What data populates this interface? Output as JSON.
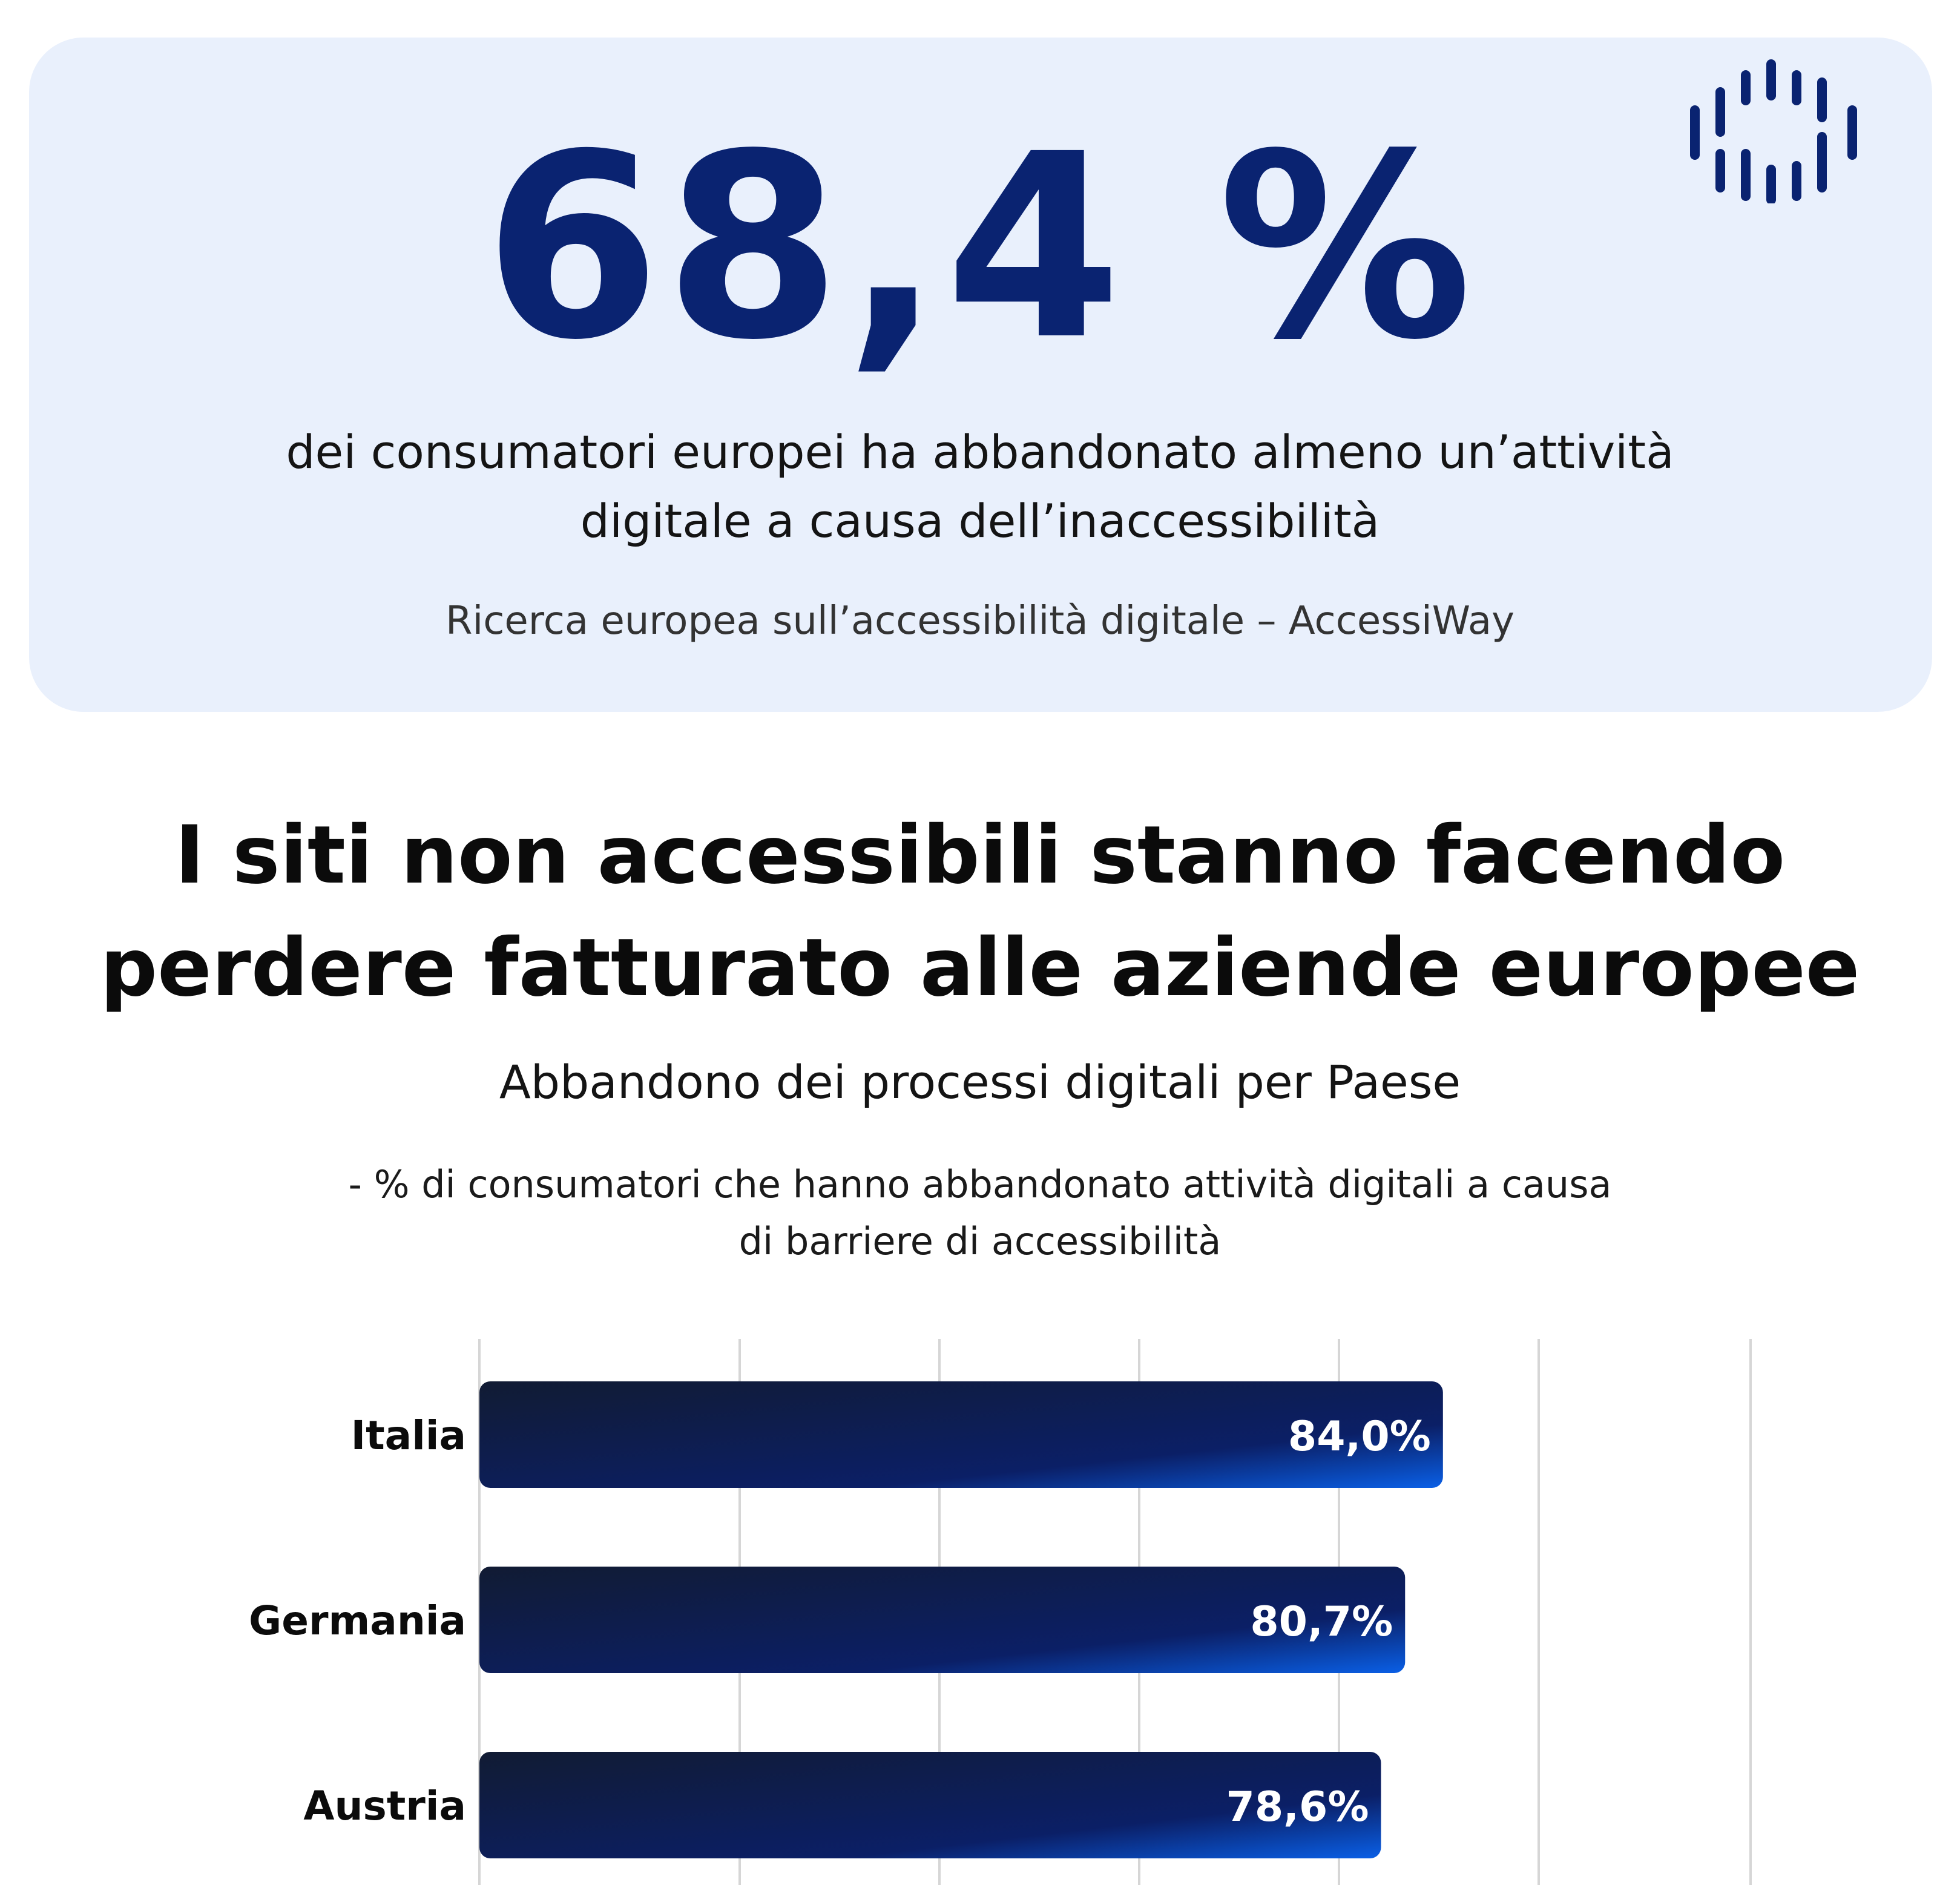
{
  "hero": {
    "stat": "68,4 %",
    "description_line1": "dei consumatori europei ha abbandonato almeno un’attività",
    "description_line2": "digitale a causa dell’inaccessibilità",
    "source": "Ricerca europea sull’accessibilità digitale – AccessiWay",
    "logo_icon": "accessiway-logo-icon"
  },
  "section": {
    "title_line1": "I siti non accessibili stanno facendo",
    "title_line2": "perdere fatturato alle aziende europee"
  },
  "colors": {
    "hero_bg": "#e9f0fc",
    "stat_color": "#0a2371",
    "bar_start": "#111b33",
    "bar_mid": "#0b1f66",
    "bar_end": "#0a5fe6",
    "gridline": "#d6d6d6"
  },
  "chart_data": {
    "type": "bar",
    "orientation": "horizontal",
    "title": "Abbandono dei processi digitali per Paese",
    "subtitle_line1": "- % di consumatori che hanno abbandonato attività digitali a causa",
    "subtitle_line2": "di barriere di accessibilità",
    "categories": [
      "Italia",
      "Germania",
      "Austria"
    ],
    "values": [
      84.0,
      80.7,
      78.6
    ],
    "value_labels": [
      "84,0%",
      "80,7%",
      "78,6%"
    ],
    "grid": true
  }
}
